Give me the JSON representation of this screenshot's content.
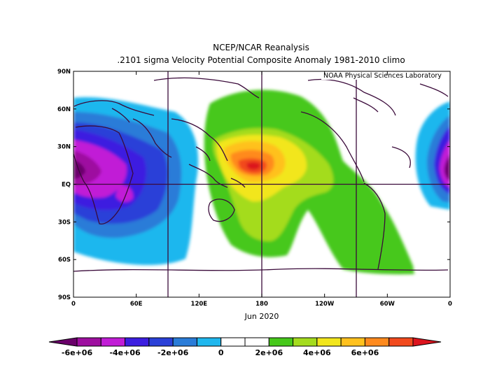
{
  "map": {
    "title_line1": "NCEP/NCAR Reanalysis",
    "title_line2": ".2101 sigma Velocity Potential  Composite Anomaly 1981-2010 climo",
    "credit": "NOAA Physical Sciences Laboratory",
    "xlabel": "Jun 2020",
    "lat_ticks": [
      "90N",
      "60N",
      "30N",
      "EQ",
      "30S",
      "60S",
      "90S"
    ],
    "lon_ticks": [
      "0",
      "60E",
      "120E",
      "180",
      "120W",
      "60W",
      "0"
    ],
    "colorbar": {
      "labels": [
        "-6e+06",
        "-4e+06",
        "-2e+06",
        "0",
        "2e+06",
        "4e+06",
        "6e+06"
      ],
      "colors": [
        "#6a006a",
        "#9e0fa0",
        "#c11dd6",
        "#3c1ee0",
        "#2a40d8",
        "#2a7cd8",
        "#1fb7ee",
        "#ffffff",
        "#ffffff",
        "#46c81a",
        "#a4dc1e",
        "#f2e61c",
        "#ffc11e",
        "#ff8a1e",
        "#f24a1e",
        "#dc141e"
      ]
    }
  }
}
